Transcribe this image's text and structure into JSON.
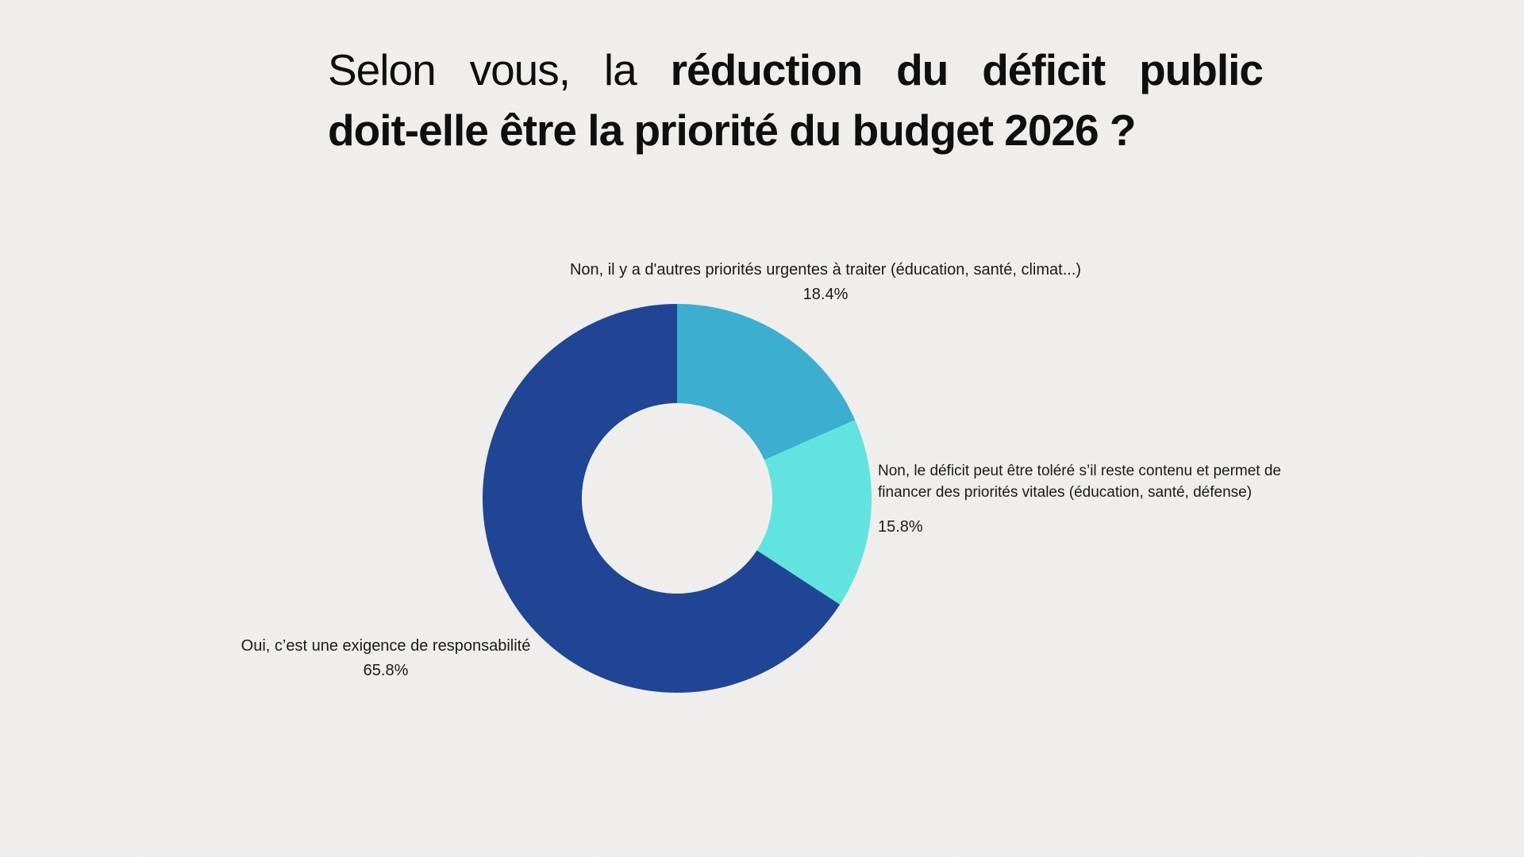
{
  "page": {
    "background_color": "#F1F0EE",
    "text_color": "#1A1A1A"
  },
  "title": {
    "prefix_regular": "Selon vous, la",
    "line1_bold": "réduction du déficit public",
    "line2_bold": "doit-elle être la priorité du budget 2026 ?"
  },
  "chart_data": {
    "type": "pie",
    "subtype": "donut",
    "title": "Selon vous, la réduction du déficit public doit-elle être la priorité du budget 2026 ?",
    "unit": "%",
    "start_angle_deg": 0,
    "direction": "clockwise",
    "inner_radius_ratio": 0.49,
    "legend_position": "outside-callouts",
    "slices": [
      {
        "label": "Non, il y a d'autres priorités urgentes à traiter (éducation, santé, climat...)",
        "value": 18.4,
        "value_label": "18.4%",
        "color": "#3CAED0"
      },
      {
        "label": "Non, le déficit peut être toléré s’il reste contenu et permet de financer des priorités vitales (éducation, santé, défense)",
        "value": 15.8,
        "value_label": "15.8%",
        "color": "#63E3DF"
      },
      {
        "label": "Oui, c’est une exigence de responsabilité",
        "value": 65.8,
        "value_label": "65.8%",
        "color": "#204594"
      }
    ]
  },
  "callouts": {
    "top": {
      "lines": [
        "Non, il y a d'autres priorités urgentes à traiter (éducation, santé, climat...)"
      ],
      "value": "18.4%"
    },
    "right": {
      "lines": [
        "Non, le déficit peut être toléré s’il reste contenu et permet de",
        "financer des priorités vitales (éducation, santé, défense)"
      ],
      "value": "15.8%"
    },
    "bottom_left": {
      "lines": [
        "Oui, c’est une exigence de responsabilité"
      ],
      "value": "65.8%"
    }
  }
}
